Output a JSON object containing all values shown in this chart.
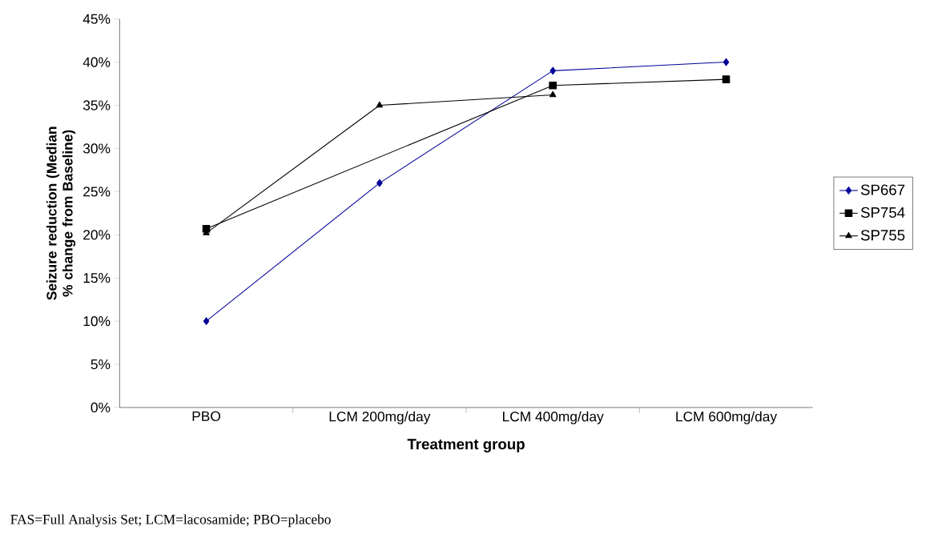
{
  "chart_data": {
    "type": "line",
    "xlabel": "Treatment group",
    "ylabel": "Seizure reduction (Median % change from Baseline)",
    "categories": [
      "PBO",
      "LCM 200mg/day",
      "LCM 400mg/day",
      "LCM 600mg/day"
    ],
    "series": [
      {
        "name": "SP667",
        "color": "#000099",
        "marker": "diamond",
        "values": [
          10,
          26,
          39,
          40
        ]
      },
      {
        "name": "SP754",
        "color": "#000000",
        "marker": "square",
        "values": [
          20.7,
          null,
          37.3,
          38
        ]
      },
      {
        "name": "SP755",
        "color": "#000000",
        "marker": "triangle",
        "values": [
          20.2,
          35,
          36.2,
          null
        ]
      }
    ],
    "ylim": [
      0,
      45
    ],
    "yticks": [
      {
        "value": 0,
        "label": "0%"
      },
      {
        "value": 5,
        "label": "5%"
      },
      {
        "value": 10,
        "label": "10%"
      },
      {
        "value": 15,
        "label": "15%"
      },
      {
        "value": 20,
        "label": "20%"
      },
      {
        "value": 25,
        "label": "25%"
      },
      {
        "value": 30,
        "label": "30%"
      },
      {
        "value": 35,
        "label": "35%"
      },
      {
        "value": 40,
        "label": "40%"
      },
      {
        "value": 45,
        "label": "45%"
      }
    ],
    "grid": false,
    "legend": "right",
    "line_style": "solid",
    "annotations": [
      "FAS=Full Analysis Set; LCM=lacosamide; PBO=placebo"
    ]
  }
}
